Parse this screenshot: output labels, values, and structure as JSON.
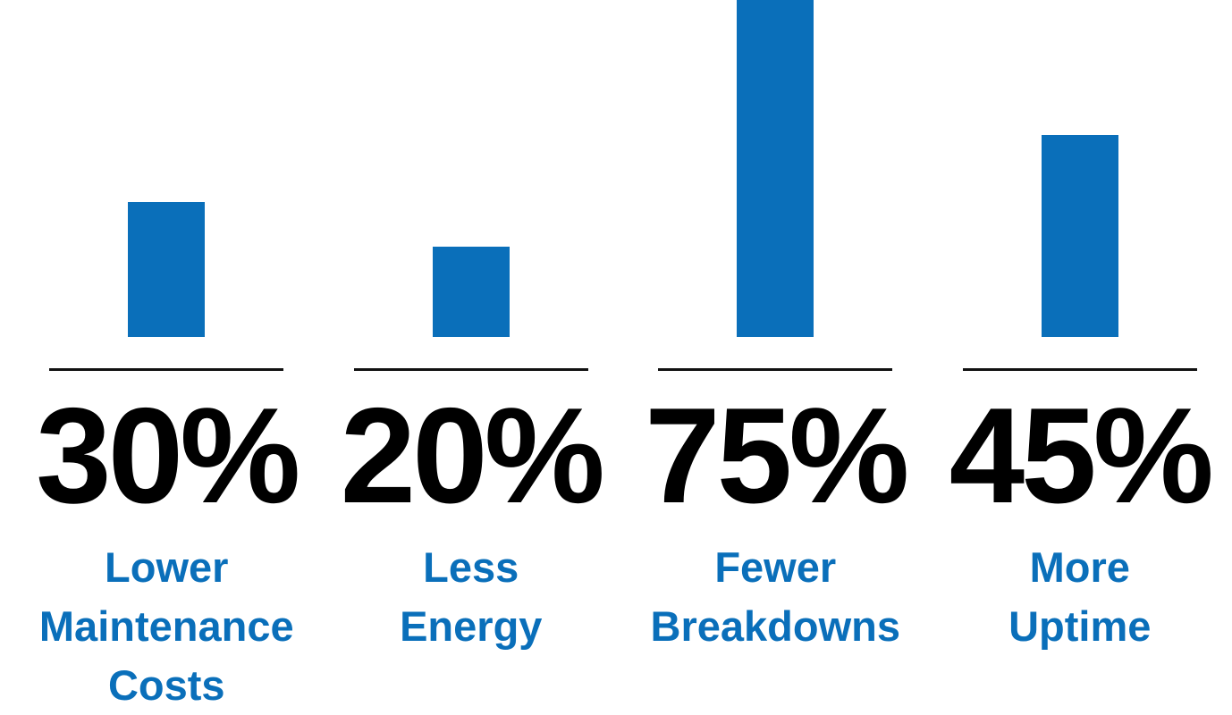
{
  "chart_data": {
    "type": "bar",
    "categories": [
      "Lower Maintenance Costs",
      "Less Energy",
      "Fewer Breakdowns",
      "More Uptime"
    ],
    "values": [
      30,
      20,
      75,
      45
    ],
    "value_labels": [
      "30%",
      "20%",
      "75%",
      "45%"
    ],
    "color": "#0a6fba"
  }
}
